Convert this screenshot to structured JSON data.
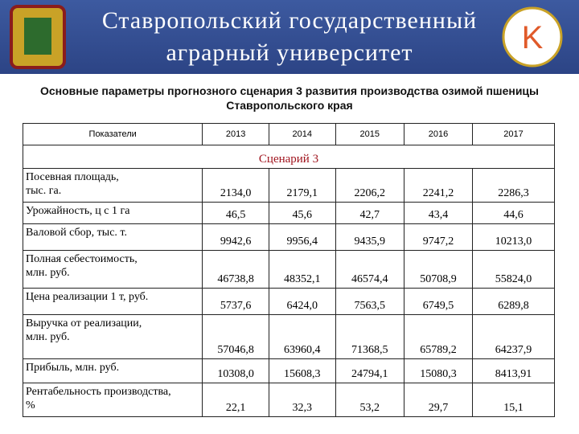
{
  "header": {
    "title_lines": [
      "Ставропольский государственный",
      "аграрный университет"
    ]
  },
  "subtitle": "Основные параметры прогнозного сценария 3 развития производства озимой пшеницы Ставропольского края",
  "table": {
    "columns": [
      "Показатели",
      "2013",
      "2014",
      "2015",
      "2016",
      "2017"
    ],
    "scenario": "Сценарий 3",
    "rows": [
      [
        "Посевная площадь,\nтыс. га.",
        "2134,0",
        "2179,1",
        "2206,2",
        "2241,2",
        "2286,3"
      ],
      [
        "Урожайность, ц с 1 га",
        "46,5",
        "45,6",
        "42,7",
        "43,4",
        "44,6"
      ],
      [
        "Валовой сбор, тыс. т.",
        "9942,6",
        "9956,4",
        "9435,9",
        "9747,2",
        "10213,0"
      ],
      [
        "Полная себестоимость,\nмлн. руб.",
        "46738,8",
        "48352,1",
        "46574,4",
        "50708,9",
        "55824,0"
      ],
      [
        "Цена реализации 1 т, руб.",
        "5737,6",
        "6424,0",
        "7563,5",
        "6749,5",
        "6289,8"
      ],
      [
        "Выручка от реализации,\nмлн. руб.",
        "57046,8",
        "63960,4",
        "71368,5",
        "65789,2",
        "64237,9"
      ],
      [
        "Прибыль, млн. руб.",
        "10308,0",
        "15608,3",
        "24794,1",
        "15080,3",
        "8413,91"
      ],
      [
        "Рентабельность производства,\n %",
        "22,1",
        "32,3",
        "53,2",
        "29,7",
        "15,1"
      ]
    ]
  }
}
